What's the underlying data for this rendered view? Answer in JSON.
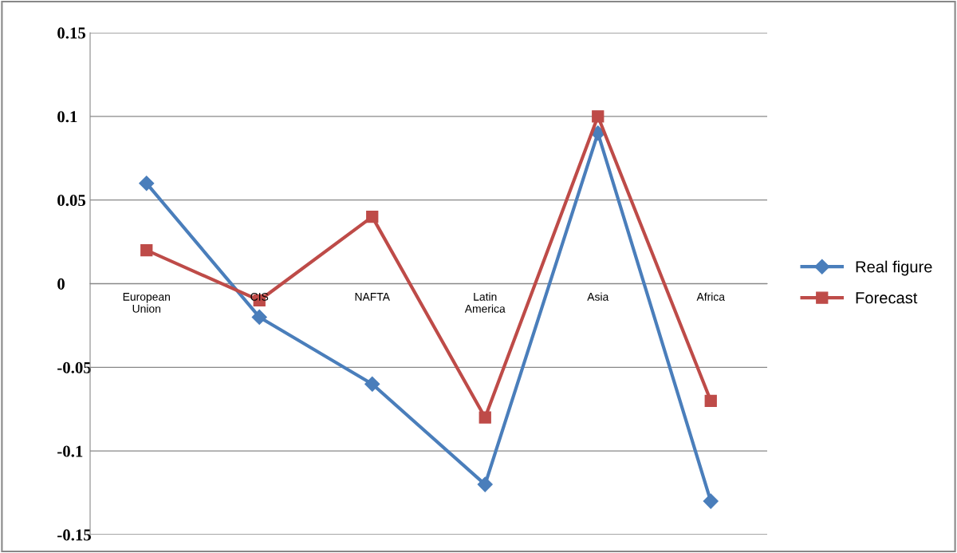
{
  "chart_data": {
    "type": "line",
    "categories": [
      "European\nUnion",
      "CIS",
      "NAFTA",
      "Latin\nAmerica",
      "Asia",
      "Africa"
    ],
    "series": [
      {
        "name": "Real figure",
        "color": "#4a7ebb",
        "marker": "diamond",
        "values": [
          0.06,
          -0.02,
          -0.06,
          -0.12,
          0.09,
          -0.13
        ]
      },
      {
        "name": "Forecast",
        "color": "#be4b48",
        "marker": "square",
        "values": [
          0.02,
          -0.01,
          0.04,
          -0.08,
          0.1,
          -0.07
        ]
      }
    ],
    "ylim": [
      -0.15,
      0.15
    ],
    "yticks": [
      -0.15,
      -0.1,
      -0.05,
      0,
      0.05,
      0.1,
      0.15
    ],
    "grid": "y",
    "legend": "right",
    "line_style": "solid"
  }
}
